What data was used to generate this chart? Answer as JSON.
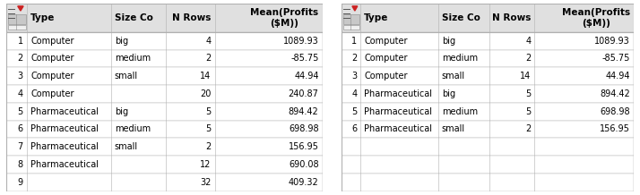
{
  "table1": {
    "rows": [
      [
        "1",
        "Computer",
        "big",
        "4",
        "1089.93"
      ],
      [
        "2",
        "Computer",
        "medium",
        "2",
        "-85.75"
      ],
      [
        "3",
        "Computer",
        "small",
        "14",
        "44.94"
      ],
      [
        "4",
        "Computer",
        "",
        "20",
        "240.87"
      ],
      [
        "5",
        "Pharmaceutical",
        "big",
        "5",
        "894.42"
      ],
      [
        "6",
        "Pharmaceutical",
        "medium",
        "5",
        "698.98"
      ],
      [
        "7",
        "Pharmaceutical",
        "small",
        "2",
        "156.95"
      ],
      [
        "8",
        "Pharmaceutical",
        "",
        "12",
        "690.08"
      ],
      [
        "9",
        "",
        "",
        "32",
        "409.32"
      ]
    ]
  },
  "table2": {
    "rows": [
      [
        "1",
        "Computer",
        "big",
        "4",
        "1089.93"
      ],
      [
        "2",
        "Computer",
        "medium",
        "2",
        "-85.75"
      ],
      [
        "3",
        "Computer",
        "small",
        "14",
        "44.94"
      ],
      [
        "4",
        "Pharmaceutical",
        "big",
        "5",
        "894.42"
      ],
      [
        "5",
        "Pharmaceutical",
        "medium",
        "5",
        "698.98"
      ],
      [
        "6",
        "Pharmaceutical",
        "small",
        "2",
        "156.95"
      ]
    ]
  },
  "col_labels": [
    "Type",
    "Size Co",
    "N Rows",
    "Mean(Profits\n($M))"
  ],
  "header_bg": "#e0e0e0",
  "border_color": "#b0b0b0",
  "text_color": "#000000",
  "font_size": 7.0,
  "header_font_size": 7.5
}
